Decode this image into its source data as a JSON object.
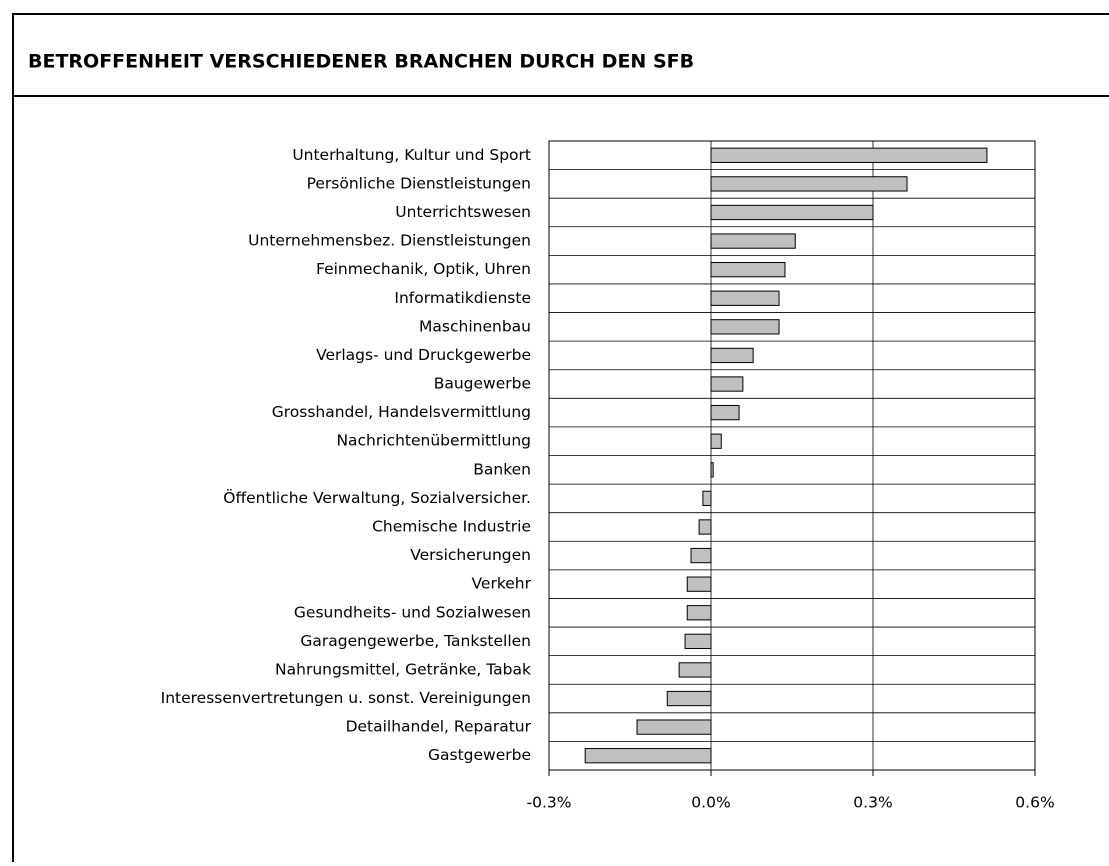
{
  "chart_data": {
    "type": "barh",
    "title": "BETROFFENHEIT VERSCHIEDENER BRANCHEN DURCH DEN SFB",
    "categories": [
      "Unterhaltung, Kultur und Sport",
      "Persönliche Dienstleistungen",
      "Unterrichtswesen",
      "Unternehmensbez. Dienstleistungen",
      "Feinmechanik, Optik, Uhren",
      "Informatikdienste",
      "Maschinenbau",
      "Verlags- und Druckgewerbe",
      "Baugewerbe",
      "Grosshandel, Handelsvermittlung",
      "Nachrichtenübermittlung",
      "Banken",
      "Öffentliche Verwaltung, Sozialversicher.",
      "Chemische Industrie",
      "Versicherungen",
      "Verkehr",
      "Gesundheits- und Sozialwesen",
      "Garagengewerbe, Tankstellen",
      "Nahrungsmittel, Getränke, Tabak",
      "Interessenvertretungen u. sonst. Vereinigungen",
      "Detailhandel, Reparatur",
      "Gastgewerbe"
    ],
    "values": [
      0.511,
      0.363,
      0.3,
      0.156,
      0.137,
      0.126,
      0.126,
      0.078,
      0.059,
      0.052,
      0.019,
      0.004,
      -0.015,
      -0.022,
      -0.037,
      -0.044,
      -0.044,
      -0.048,
      -0.059,
      -0.081,
      -0.137,
      -0.233
    ],
    "color": "#c0c0c0",
    "xlim": [
      -0.3,
      0.6
    ],
    "xticks": [
      {
        "value": -0.3,
        "label": "-0.3%"
      },
      {
        "value": 0,
        "label": "0.0%"
      },
      {
        "value": 0.3,
        "label": "0.3%"
      },
      {
        "value": 0.6,
        "label": "0.6%"
      }
    ],
    "grid": true
  }
}
